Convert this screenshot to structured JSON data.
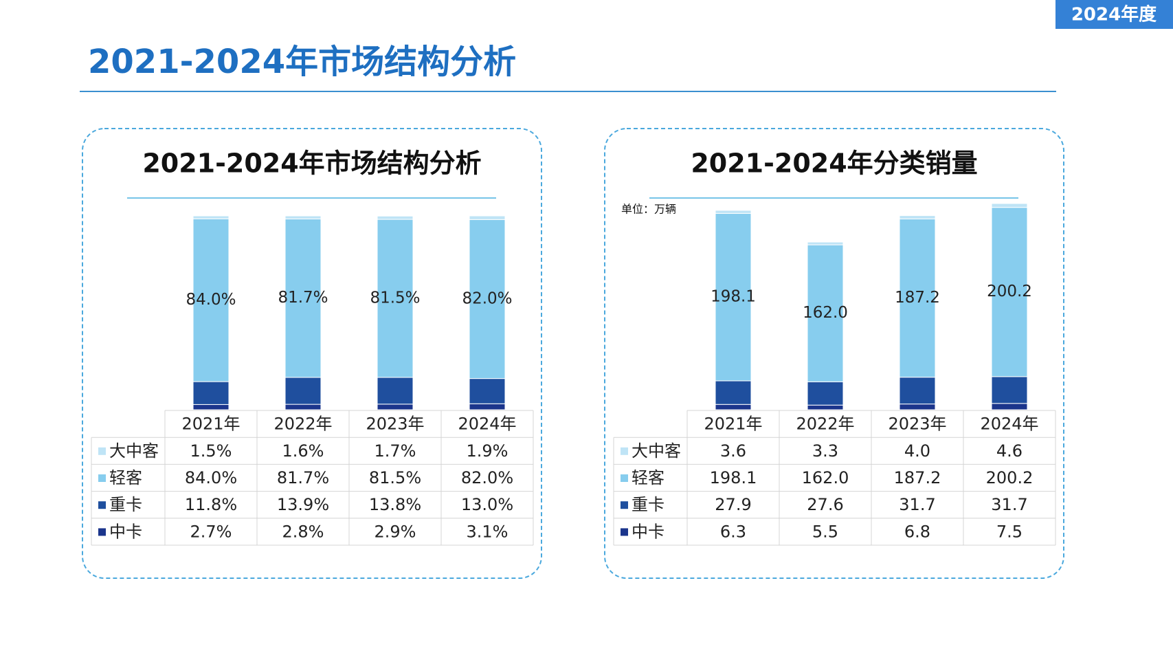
{
  "header": {
    "badge": "2024年度",
    "title": "2021-2024年市场结构分析"
  },
  "chart_data": [
    {
      "type": "bar",
      "stacked": true,
      "title": "2021-2024年市场结构分析",
      "categories": [
        "2021年",
        "2022年",
        "2023年",
        "2024年"
      ],
      "series": [
        {
          "name": "大中客",
          "color": "#bfe4f6",
          "values": [
            1.5,
            1.6,
            1.7,
            1.9
          ],
          "value_labels": [
            "1.5%",
            "1.6%",
            "1.7%",
            "1.9%"
          ]
        },
        {
          "name": "轻客",
          "color": "#87cdee",
          "values": [
            84.0,
            81.7,
            81.5,
            82.0
          ],
          "value_labels": [
            "84.0%",
            "81.7%",
            "81.5%",
            "82.0%"
          ],
          "show_labels": true
        },
        {
          "name": "重卡",
          "color": "#1f4f9e",
          "values": [
            11.8,
            13.9,
            13.8,
            13.0
          ],
          "value_labels": [
            "11.8%",
            "13.9%",
            "13.8%",
            "13.0%"
          ]
        },
        {
          "name": "中卡",
          "color": "#1b358c",
          "values": [
            2.7,
            2.8,
            2.9,
            3.1
          ],
          "value_labels": [
            "2.7%",
            "2.8%",
            "2.9%",
            "3.1%"
          ]
        }
      ]
    },
    {
      "type": "bar",
      "stacked": true,
      "title": "2021-2024年分类销量",
      "unit": "单位：万辆",
      "categories": [
        "2021年",
        "2022年",
        "2023年",
        "2024年"
      ],
      "series": [
        {
          "name": "大中客",
          "color": "#bfe4f6",
          "values": [
            3.6,
            3.3,
            4.0,
            4.6
          ],
          "value_labels": [
            "3.6",
            "3.3",
            "4.0",
            "4.6"
          ]
        },
        {
          "name": "轻客",
          "color": "#87cdee",
          "values": [
            198.1,
            162.0,
            187.2,
            200.2
          ],
          "value_labels": [
            "198.1",
            "162.0",
            "187.2",
            "200.2"
          ],
          "show_labels": true
        },
        {
          "name": "重卡",
          "color": "#1f4f9e",
          "values": [
            27.9,
            27.6,
            31.7,
            31.7
          ],
          "value_labels": [
            "27.9",
            "27.6",
            "31.7",
            "31.7"
          ]
        },
        {
          "name": "中卡",
          "color": "#1b358c",
          "values": [
            6.3,
            5.5,
            6.8,
            7.5
          ],
          "value_labels": [
            "6.3",
            "5.5",
            "6.8",
            "7.5"
          ]
        }
      ]
    }
  ]
}
